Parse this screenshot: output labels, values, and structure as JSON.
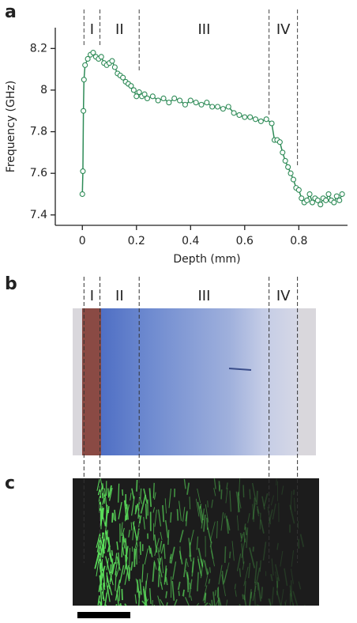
{
  "panels": [
    "a",
    "b",
    "c"
  ],
  "chart_data": {
    "type": "line",
    "x_label": "Depth (mm)",
    "y_label": "Frequency (GHz)",
    "xlim": [
      -0.1,
      0.98
    ],
    "xticks": [
      0,
      0.2,
      0.4,
      0.6,
      0.8
    ],
    "ylim": [
      7.35,
      8.3
    ],
    "yticks": [
      7.4,
      7.6,
      7.8,
      8.0,
      8.2
    ],
    "regions": [
      "I",
      "II",
      "III",
      "IV"
    ],
    "boundaries": [
      0.006,
      0.065,
      0.21,
      0.69,
      0.795
    ],
    "series": [
      {
        "color": "#2e8b57",
        "x": [
          0,
          0.002,
          0.004,
          0.006,
          0.01,
          0.02,
          0.03,
          0.04,
          0.05,
          0.06,
          0.07,
          0.08,
          0.09,
          0.1,
          0.11,
          0.12,
          0.13,
          0.14,
          0.15,
          0.16,
          0.17,
          0.18,
          0.19,
          0.2,
          0.21,
          0.22,
          0.23,
          0.24,
          0.26,
          0.28,
          0.3,
          0.32,
          0.34,
          0.36,
          0.38,
          0.4,
          0.42,
          0.44,
          0.46,
          0.48,
          0.5,
          0.52,
          0.54,
          0.56,
          0.58,
          0.6,
          0.62,
          0.64,
          0.66,
          0.68,
          0.7,
          0.71,
          0.72,
          0.73,
          0.74,
          0.75,
          0.76,
          0.77,
          0.78,
          0.79,
          0.8,
          0.81,
          0.82,
          0.83,
          0.84,
          0.85,
          0.86,
          0.87,
          0.88,
          0.89,
          0.9,
          0.91,
          0.92,
          0.93,
          0.94,
          0.95,
          0.96
        ],
        "values": [
          7.5,
          7.61,
          7.9,
          8.05,
          8.12,
          8.15,
          8.17,
          8.18,
          8.16,
          8.15,
          8.16,
          8.13,
          8.12,
          8.13,
          8.14,
          8.11,
          8.08,
          8.07,
          8.06,
          8.04,
          8.03,
          8.02,
          8.0,
          7.97,
          7.99,
          7.97,
          7.98,
          7.96,
          7.97,
          7.95,
          7.96,
          7.94,
          7.96,
          7.95,
          7.93,
          7.95,
          7.94,
          7.93,
          7.94,
          7.92,
          7.92,
          7.91,
          7.92,
          7.89,
          7.88,
          7.87,
          7.87,
          7.86,
          7.85,
          7.86,
          7.84,
          7.76,
          7.76,
          7.75,
          7.7,
          7.66,
          7.63,
          7.6,
          7.57,
          7.53,
          7.52,
          7.48,
          7.46,
          7.47,
          7.5,
          7.46,
          7.48,
          7.47,
          7.45,
          7.48,
          7.47,
          7.5,
          7.47,
          7.46,
          7.49,
          7.47,
          7.5
        ]
      }
    ]
  }
}
